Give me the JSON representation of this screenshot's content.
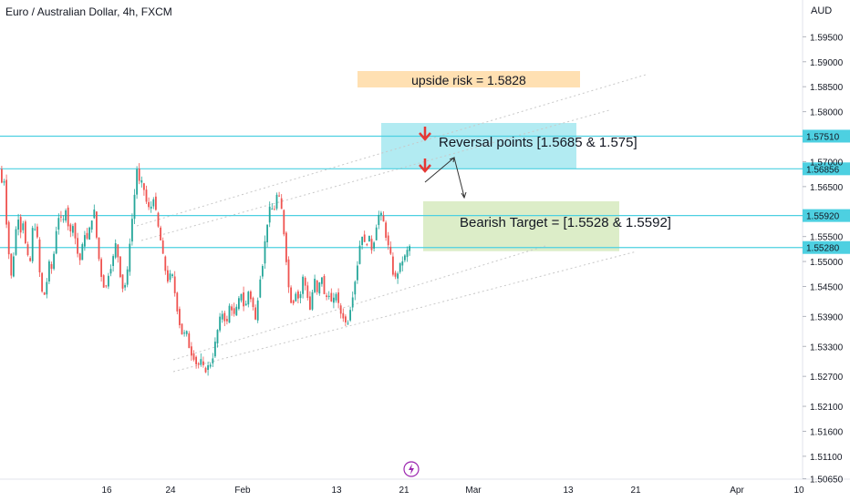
{
  "header": {
    "title": "Euro / Australian Dollar, 4h, FXCM",
    "currency": "AUD"
  },
  "colors": {
    "up": "#26a69a",
    "down": "#ef5350",
    "level": "#4dd0e1",
    "reversal_zone": "#b2ebf2",
    "target_zone": "#dcedc8",
    "risk_zone": "#ffe0b2",
    "arrow": "#e53935"
  },
  "chart_data": {
    "type": "candlestick",
    "symbol": "EURAUD",
    "timeframe": "4h",
    "y_axis_ticks": [
      "1.59500",
      "1.59000",
      "1.58500",
      "1.58000",
      "1.57000",
      "1.56500",
      "1.55500",
      "1.55000",
      "1.54500",
      "1.53900",
      "1.53300",
      "1.52700",
      "1.52100",
      "1.51600",
      "1.51100",
      "1.50650"
    ],
    "ylim": [
      1.5035,
      1.602
    ],
    "x_axis_ticks": [
      "16",
      "24",
      "Feb",
      "13",
      "21",
      "Mar",
      "13",
      "21",
      "Apr",
      "10"
    ],
    "levels": [
      {
        "price": 1.5751,
        "label": "1.57510"
      },
      {
        "price": 1.56856,
        "label": "1.56856"
      },
      {
        "price": 1.5592,
        "label": "1.55920"
      },
      {
        "price": 1.5528,
        "label": "1.55280"
      }
    ],
    "annotations": [
      {
        "text": "upside risk = 1.5828",
        "zone": "risk"
      },
      {
        "text": "Reversal points [1.5685 & 1.575]",
        "zone": "reversal"
      },
      {
        "text": "Bearish Target = [1.5528 & 1.5592]",
        "zone": "target"
      }
    ],
    "price_path": [
      [
        0,
        1.57
      ],
      [
        3,
        1.5655
      ],
      [
        6,
        1.567
      ],
      [
        10,
        1.554
      ],
      [
        14,
        1.547
      ],
      [
        17,
        1.552
      ],
      [
        21,
        1.56
      ],
      [
        24,
        1.556
      ],
      [
        27,
        1.558
      ],
      [
        31,
        1.551
      ],
      [
        35,
        1.55
      ],
      [
        38,
        1.558
      ],
      [
        42,
        1.556
      ],
      [
        45,
        1.548
      ],
      [
        49,
        1.542
      ],
      [
        53,
        1.546
      ],
      [
        56,
        1.55
      ],
      [
        59,
        1.548
      ],
      [
        63,
        1.556
      ],
      [
        67,
        1.56
      ],
      [
        70,
        1.557
      ],
      [
        74,
        1.561
      ],
      [
        78,
        1.555
      ],
      [
        82,
        1.558
      ],
      [
        86,
        1.552
      ],
      [
        90,
        1.55
      ],
      [
        94,
        1.556
      ],
      [
        98,
        1.554
      ],
      [
        101,
        1.558
      ],
      [
        105,
        1.56
      ],
      [
        109,
        1.552
      ],
      [
        113,
        1.547
      ],
      [
        117,
        1.544
      ],
      [
        121,
        1.548
      ],
      [
        125,
        1.55
      ],
      [
        129,
        1.554
      ],
      [
        133,
        1.548
      ],
      [
        137,
        1.544
      ],
      [
        141,
        1.547
      ],
      [
        144,
        1.554
      ],
      [
        148,
        1.561
      ],
      [
        152,
        1.569
      ],
      [
        155,
        1.565
      ],
      [
        158,
        1.566
      ],
      [
        162,
        1.562
      ],
      [
        166,
        1.56
      ],
      [
        170,
        1.563
      ],
      [
        174,
        1.558
      ],
      [
        178,
        1.554
      ],
      [
        182,
        1.549
      ],
      [
        186,
        1.546
      ],
      [
        190,
        1.548
      ],
      [
        194,
        1.543
      ],
      [
        198,
        1.538
      ],
      [
        202,
        1.535
      ],
      [
        206,
        1.536
      ],
      [
        210,
        1.532
      ],
      [
        214,
        1.531
      ],
      [
        218,
        1.529
      ],
      [
        222,
        1.53
      ],
      [
        226,
        1.528
      ],
      [
        230,
        1.529
      ],
      [
        234,
        1.53
      ],
      [
        238,
        1.534
      ],
      [
        242,
        1.538
      ],
      [
        246,
        1.54
      ],
      [
        250,
        1.537
      ],
      [
        254,
        1.542
      ],
      [
        258,
        1.539
      ],
      [
        262,
        1.541
      ],
      [
        266,
        1.544
      ],
      [
        270,
        1.54
      ],
      [
        274,
        1.544
      ],
      [
        278,
        1.542
      ],
      [
        282,
        1.538
      ],
      [
        286,
        1.546
      ],
      [
        290,
        1.55
      ],
      [
        294,
        1.557
      ],
      [
        298,
        1.561
      ],
      [
        302,
        1.56
      ],
      [
        306,
        1.564
      ],
      [
        310,
        1.561
      ],
      [
        314,
        1.554
      ],
      [
        318,
        1.545
      ],
      [
        322,
        1.541
      ],
      [
        326,
        1.544
      ],
      [
        330,
        1.542
      ],
      [
        334,
        1.547
      ],
      [
        338,
        1.544
      ],
      [
        342,
        1.54
      ],
      [
        346,
        1.547
      ],
      [
        350,
        1.543
      ],
      [
        354,
        1.548
      ],
      [
        358,
        1.542
      ],
      [
        362,
        1.544
      ],
      [
        366,
        1.541
      ],
      [
        370,
        1.544
      ],
      [
        374,
        1.54
      ],
      [
        378,
        1.539
      ],
      [
        382,
        1.537
      ],
      [
        386,
        1.541
      ],
      [
        390,
        1.545
      ],
      [
        394,
        1.55
      ],
      [
        398,
        1.556
      ],
      [
        402,
        1.553
      ],
      [
        406,
        1.555
      ],
      [
        410,
        1.552
      ],
      [
        414,
        1.557
      ],
      [
        418,
        1.56
      ],
      [
        422,
        1.558
      ],
      [
        426,
        1.554
      ],
      [
        430,
        1.551
      ],
      [
        434,
        1.546
      ],
      [
        438,
        1.548
      ],
      [
        442,
        1.55
      ],
      [
        446,
        1.551
      ],
      [
        450,
        1.553
      ]
    ]
  }
}
